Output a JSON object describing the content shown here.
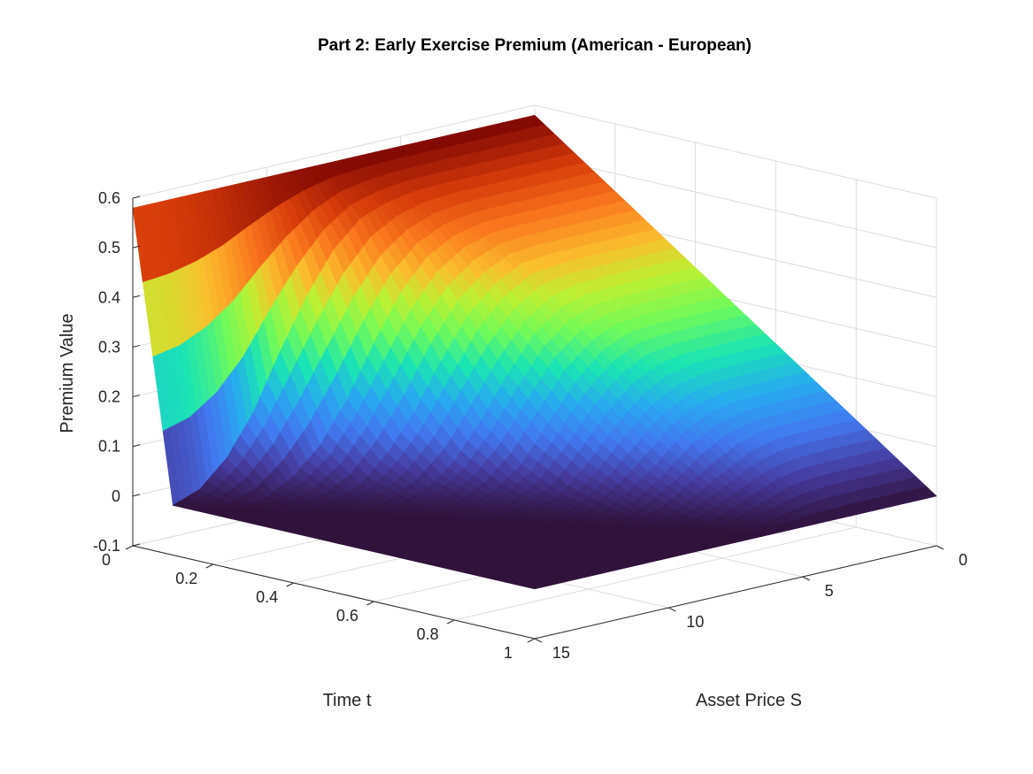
{
  "chart_data": {
    "type": "surface",
    "title": "Part 2: Early Exercise Premium (American - European)",
    "xlabel": "Time t",
    "ylabel": "Asset Price S",
    "zlabel": "Premium Value",
    "xlim": [
      0,
      1
    ],
    "ylim": [
      0,
      15
    ],
    "zlim": [
      -0.1,
      0.6
    ],
    "xticks": [
      0,
      0.2,
      0.4,
      0.6,
      0.8,
      1
    ],
    "xtick_labels": [
      "0",
      "0.2",
      "0.4",
      "0.6",
      "0.8",
      "1"
    ],
    "yticks": [
      0,
      5,
      10,
      15
    ],
    "ytick_labels": [
      "0",
      "5",
      "10",
      "15"
    ],
    "zticks": [
      -0.1,
      0,
      0.1,
      0.2,
      0.3,
      0.4,
      0.5,
      0.6
    ],
    "ztick_labels": [
      "-0.1",
      "0",
      "0.1",
      "0.2",
      "0.3",
      "0.4",
      "0.5",
      "0.6"
    ],
    "grid": true,
    "colormap": "turbo",
    "surface": {
      "t": [
        0,
        0.1,
        0.2,
        0.3,
        0.4,
        0.5,
        0.6,
        0.7,
        0.8,
        0.9,
        1.0
      ],
      "S": [
        0,
        1,
        2,
        3,
        4,
        5,
        6,
        7,
        8,
        9,
        10,
        11,
        12,
        13,
        14,
        15
      ],
      "description_rows_are_t": true,
      "premium": [
        [
          0.58,
          0.58,
          0.58,
          0.58,
          0.58,
          0.58,
          0.58,
          0.58,
          0.58,
          0.58,
          0.58,
          0.58,
          0.58,
          0.58,
          0.58,
          0.58
        ],
        [
          0.522,
          0.522,
          0.522,
          0.522,
          0.522,
          0.522,
          0.52,
          0.51,
          0.49,
          0.44,
          0.36,
          0.26,
          0.15,
          0.07,
          0.02,
          0.0
        ],
        [
          0.464,
          0.464,
          0.464,
          0.464,
          0.464,
          0.462,
          0.45,
          0.42,
          0.36,
          0.27,
          0.17,
          0.09,
          0.04,
          0.01,
          0.0,
          0.0
        ],
        [
          0.406,
          0.406,
          0.406,
          0.406,
          0.405,
          0.4,
          0.37,
          0.32,
          0.24,
          0.15,
          0.08,
          0.03,
          0.01,
          0.0,
          0.0,
          0.0
        ],
        [
          0.348,
          0.348,
          0.348,
          0.348,
          0.345,
          0.33,
          0.29,
          0.22,
          0.14,
          0.07,
          0.03,
          0.01,
          0.0,
          0.0,
          0.0,
          0.0
        ],
        [
          0.29,
          0.29,
          0.29,
          0.29,
          0.285,
          0.26,
          0.21,
          0.14,
          0.07,
          0.03,
          0.01,
          0.0,
          0.0,
          0.0,
          0.0,
          0.0
        ],
        [
          0.232,
          0.232,
          0.232,
          0.23,
          0.22,
          0.19,
          0.14,
          0.08,
          0.03,
          0.01,
          0.0,
          0.0,
          0.0,
          0.0,
          0.0,
          0.0
        ],
        [
          0.174,
          0.174,
          0.174,
          0.172,
          0.16,
          0.13,
          0.08,
          0.04,
          0.01,
          0.0,
          0.0,
          0.0,
          0.0,
          0.0,
          0.0,
          0.0
        ],
        [
          0.116,
          0.116,
          0.116,
          0.114,
          0.1,
          0.07,
          0.04,
          0.01,
          0.0,
          0.0,
          0.0,
          0.0,
          0.0,
          0.0,
          0.0,
          0.0
        ],
        [
          0.058,
          0.058,
          0.058,
          0.057,
          0.05,
          0.03,
          0.01,
          0.0,
          0.0,
          0.0,
          0.0,
          0.0,
          0.0,
          0.0,
          0.0,
          0.0
        ],
        [
          0.0,
          0.0,
          0.0,
          0.0,
          0.0,
          0.0,
          0.0,
          0.0,
          0.0,
          0.0,
          0.0,
          0.0,
          0.0,
          0.0,
          0.0,
          0.0
        ]
      ]
    }
  }
}
